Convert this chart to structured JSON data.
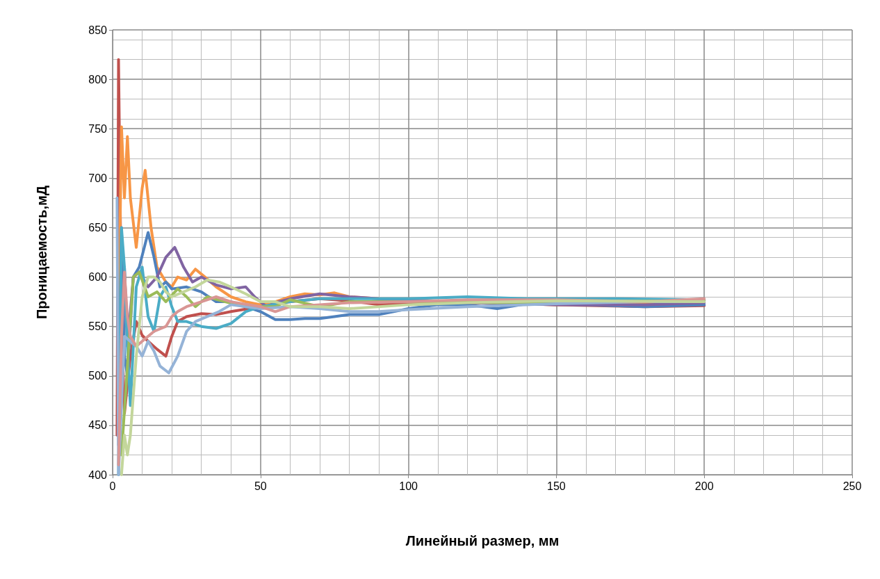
{
  "chart_data": {
    "type": "line",
    "xlabel": "Линейный размер, мм",
    "ylabel": "Проницаемость,мД",
    "xlim": [
      0,
      250
    ],
    "xticks": [
      0,
      50,
      100,
      150,
      200,
      250
    ],
    "ylim": [
      400,
      850
    ],
    "yticks": [
      400,
      450,
      500,
      550,
      600,
      650,
      700,
      750,
      800,
      850
    ],
    "grid": true,
    "marker": "none",
    "line_style": "solid",
    "series": [
      {
        "color": "#c0504d",
        "x": [
          1.5,
          2,
          3,
          4,
          6,
          8,
          10,
          12,
          15,
          18,
          20,
          22,
          25,
          30,
          35,
          40,
          50,
          60,
          70,
          80,
          90,
          100,
          120,
          150,
          180,
          200
        ],
        "values": [
          440,
          820,
          560,
          462,
          520,
          555,
          541,
          535,
          527,
          520,
          540,
          555,
          560,
          563,
          562,
          565,
          570,
          575,
          578,
          576,
          572,
          573,
          574,
          572,
          570,
          571
        ]
      },
      {
        "color": "#f79646",
        "x": [
          2,
          3,
          4,
          5,
          6,
          8,
          10,
          11,
          13,
          15,
          18,
          20,
          22,
          25,
          28,
          32,
          35,
          40,
          45,
          50,
          55,
          60,
          65,
          70,
          75,
          80,
          90,
          100,
          120,
          150,
          170,
          200
        ],
        "values": [
          537,
          752,
          680,
          742,
          680,
          630,
          690,
          708,
          650,
          610,
          595,
          590,
          600,
          597,
          608,
          598,
          590,
          580,
          575,
          572,
          575,
          580,
          583,
          582,
          584,
          580,
          578,
          577,
          574,
          572,
          573,
          576
        ]
      },
      {
        "color": "#4f81bd",
        "x": [
          2,
          3,
          4,
          5,
          7,
          9,
          12,
          14,
          16,
          18,
          20,
          25,
          30,
          35,
          40,
          45,
          50,
          55,
          60,
          65,
          70,
          75,
          80,
          90,
          100,
          110,
          120,
          130,
          140,
          160,
          180,
          200
        ],
        "values": [
          430,
          650,
          520,
          500,
          600,
          610,
          645,
          620,
          590,
          595,
          588,
          590,
          585,
          575,
          575,
          570,
          565,
          557,
          557,
          558,
          558,
          560,
          562,
          562,
          568,
          572,
          572,
          568,
          573,
          572,
          570,
          572
        ]
      },
      {
        "color": "#8064a2",
        "x": [
          2,
          3,
          4,
          5,
          7,
          9,
          12,
          15,
          18,
          21,
          24,
          27,
          30,
          35,
          40,
          45,
          48,
          52,
          55,
          60,
          70,
          80,
          90,
          100,
          120,
          150,
          180,
          200
        ],
        "values": [
          440,
          560,
          610,
          530,
          600,
          605,
          590,
          600,
          620,
          630,
          610,
          595,
          600,
          592,
          588,
          590,
          580,
          570,
          574,
          578,
          583,
          580,
          578,
          577,
          574,
          572,
          572,
          574
        ]
      },
      {
        "color": "#4bacc6",
        "x": [
          2,
          3,
          4,
          5,
          6,
          8,
          10,
          12,
          14,
          16,
          18,
          20,
          22,
          25,
          30,
          35,
          40,
          45,
          50,
          60,
          70,
          80,
          100,
          120,
          140,
          170,
          200
        ],
        "values": [
          400,
          650,
          610,
          530,
          470,
          590,
          610,
          560,
          545,
          580,
          590,
          570,
          555,
          555,
          550,
          548,
          553,
          565,
          570,
          575,
          578,
          578,
          578,
          580,
          578,
          578,
          577
        ]
      },
      {
        "color": "#9bbb59",
        "x": [
          3,
          5,
          7,
          9,
          12,
          15,
          18,
          22,
          25,
          28,
          32,
          38,
          45,
          55,
          60,
          70,
          80,
          100,
          130,
          160,
          200
        ],
        "values": [
          420,
          510,
          600,
          605,
          580,
          585,
          575,
          588,
          580,
          570,
          580,
          575,
          570,
          570,
          577,
          570,
          575,
          575,
          574,
          575,
          576
        ]
      },
      {
        "color": "#95b3d7",
        "x": [
          1.5,
          2,
          4,
          8,
          10,
          12,
          14,
          16,
          19,
          22,
          25,
          28,
          32,
          36,
          40,
          45,
          50,
          60,
          70,
          80,
          90,
          100,
          120,
          150,
          180,
          200
        ],
        "values": [
          680,
          400,
          540,
          530,
          520,
          535,
          525,
          510,
          503,
          520,
          545,
          555,
          560,
          565,
          572,
          570,
          568,
          570,
          568,
          565,
          565,
          567,
          570,
          573,
          575,
          575
        ]
      },
      {
        "color": "#d99694",
        "x": [
          2,
          3,
          4,
          5,
          6,
          8,
          10,
          14,
          18,
          20,
          22,
          25,
          30,
          35,
          40,
          50,
          55,
          60,
          70,
          80,
          100,
          120,
          150,
          180,
          200
        ],
        "values": [
          410,
          540,
          605,
          560,
          540,
          530,
          535,
          545,
          550,
          560,
          565,
          570,
          575,
          580,
          575,
          570,
          565,
          570,
          572,
          574,
          575,
          577,
          577,
          575,
          578
        ]
      },
      {
        "color": "#c3d69b",
        "x": [
          3,
          4,
          5,
          6,
          8,
          10,
          12,
          14,
          16,
          18,
          20,
          24,
          28,
          32,
          36,
          40,
          45,
          50,
          55,
          60,
          70,
          80,
          100,
          120,
          150,
          200
        ],
        "values": [
          400,
          440,
          420,
          440,
          520,
          580,
          600,
          600,
          595,
          585,
          580,
          585,
          590,
          597,
          595,
          590,
          583,
          575,
          575,
          570,
          570,
          568,
          572,
          574,
          576,
          575
        ]
      }
    ]
  }
}
